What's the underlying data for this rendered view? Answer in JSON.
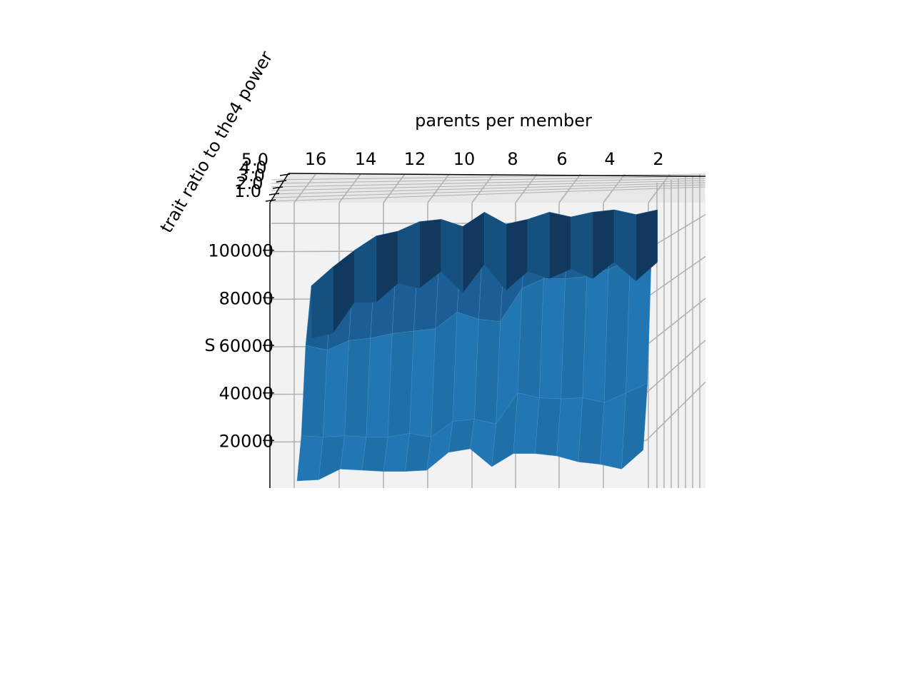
{
  "chart_data": {
    "type": "surface3d",
    "xlabel": "parents per member",
    "ylabel": "trait ratio to the4 power",
    "zlabel": "S",
    "x_ticks": [
      "16",
      "14",
      "12",
      "10",
      "8",
      "6",
      "4",
      "2"
    ],
    "y_ticks": [
      "1.0",
      "2.0",
      "3.0",
      "4.0",
      "5.0"
    ],
    "z_ticks": [
      "20000",
      "40000",
      "60000",
      "80000",
      "100000"
    ],
    "zlim": [
      0,
      120000
    ],
    "grid": true,
    "colors": {
      "surface": "#1f77b4",
      "surface_dark": "#11395e",
      "pane": "#f2f2f2",
      "grid": "#b0b0b0"
    },
    "x": [
      17,
      16,
      15,
      14,
      13,
      12,
      11,
      10,
      9,
      8,
      7,
      6,
      5,
      4,
      3,
      2,
      1
    ],
    "series": [
      {
        "values": [
          3000,
          3500,
          8000,
          7500,
          7000,
          7000,
          7500,
          15000,
          16500,
          9000,
          14500,
          14500,
          13500,
          11000,
          10000,
          8000,
          16000
        ]
      },
      {
        "values": [
          22000,
          21500,
          22000,
          21500,
          21500,
          23000,
          21500,
          28000,
          29000,
          27000,
          40000,
          38000,
          37500,
          38000,
          36000,
          40000,
          44000
        ]
      },
      {
        "values": [
          60000,
          58000,
          62000,
          63000,
          65000,
          66000,
          67000,
          74000,
          71000,
          70000,
          84000,
          88000,
          88000,
          89000,
          92000,
          96000,
          103000
        ]
      },
      {
        "values": [
          85000,
          93000,
          100000,
          106000,
          108000,
          112000,
          113000,
          110000,
          116000,
          111000,
          113000,
          116000,
          114000,
          116000,
          117000,
          115000,
          117000
        ]
      }
    ]
  }
}
